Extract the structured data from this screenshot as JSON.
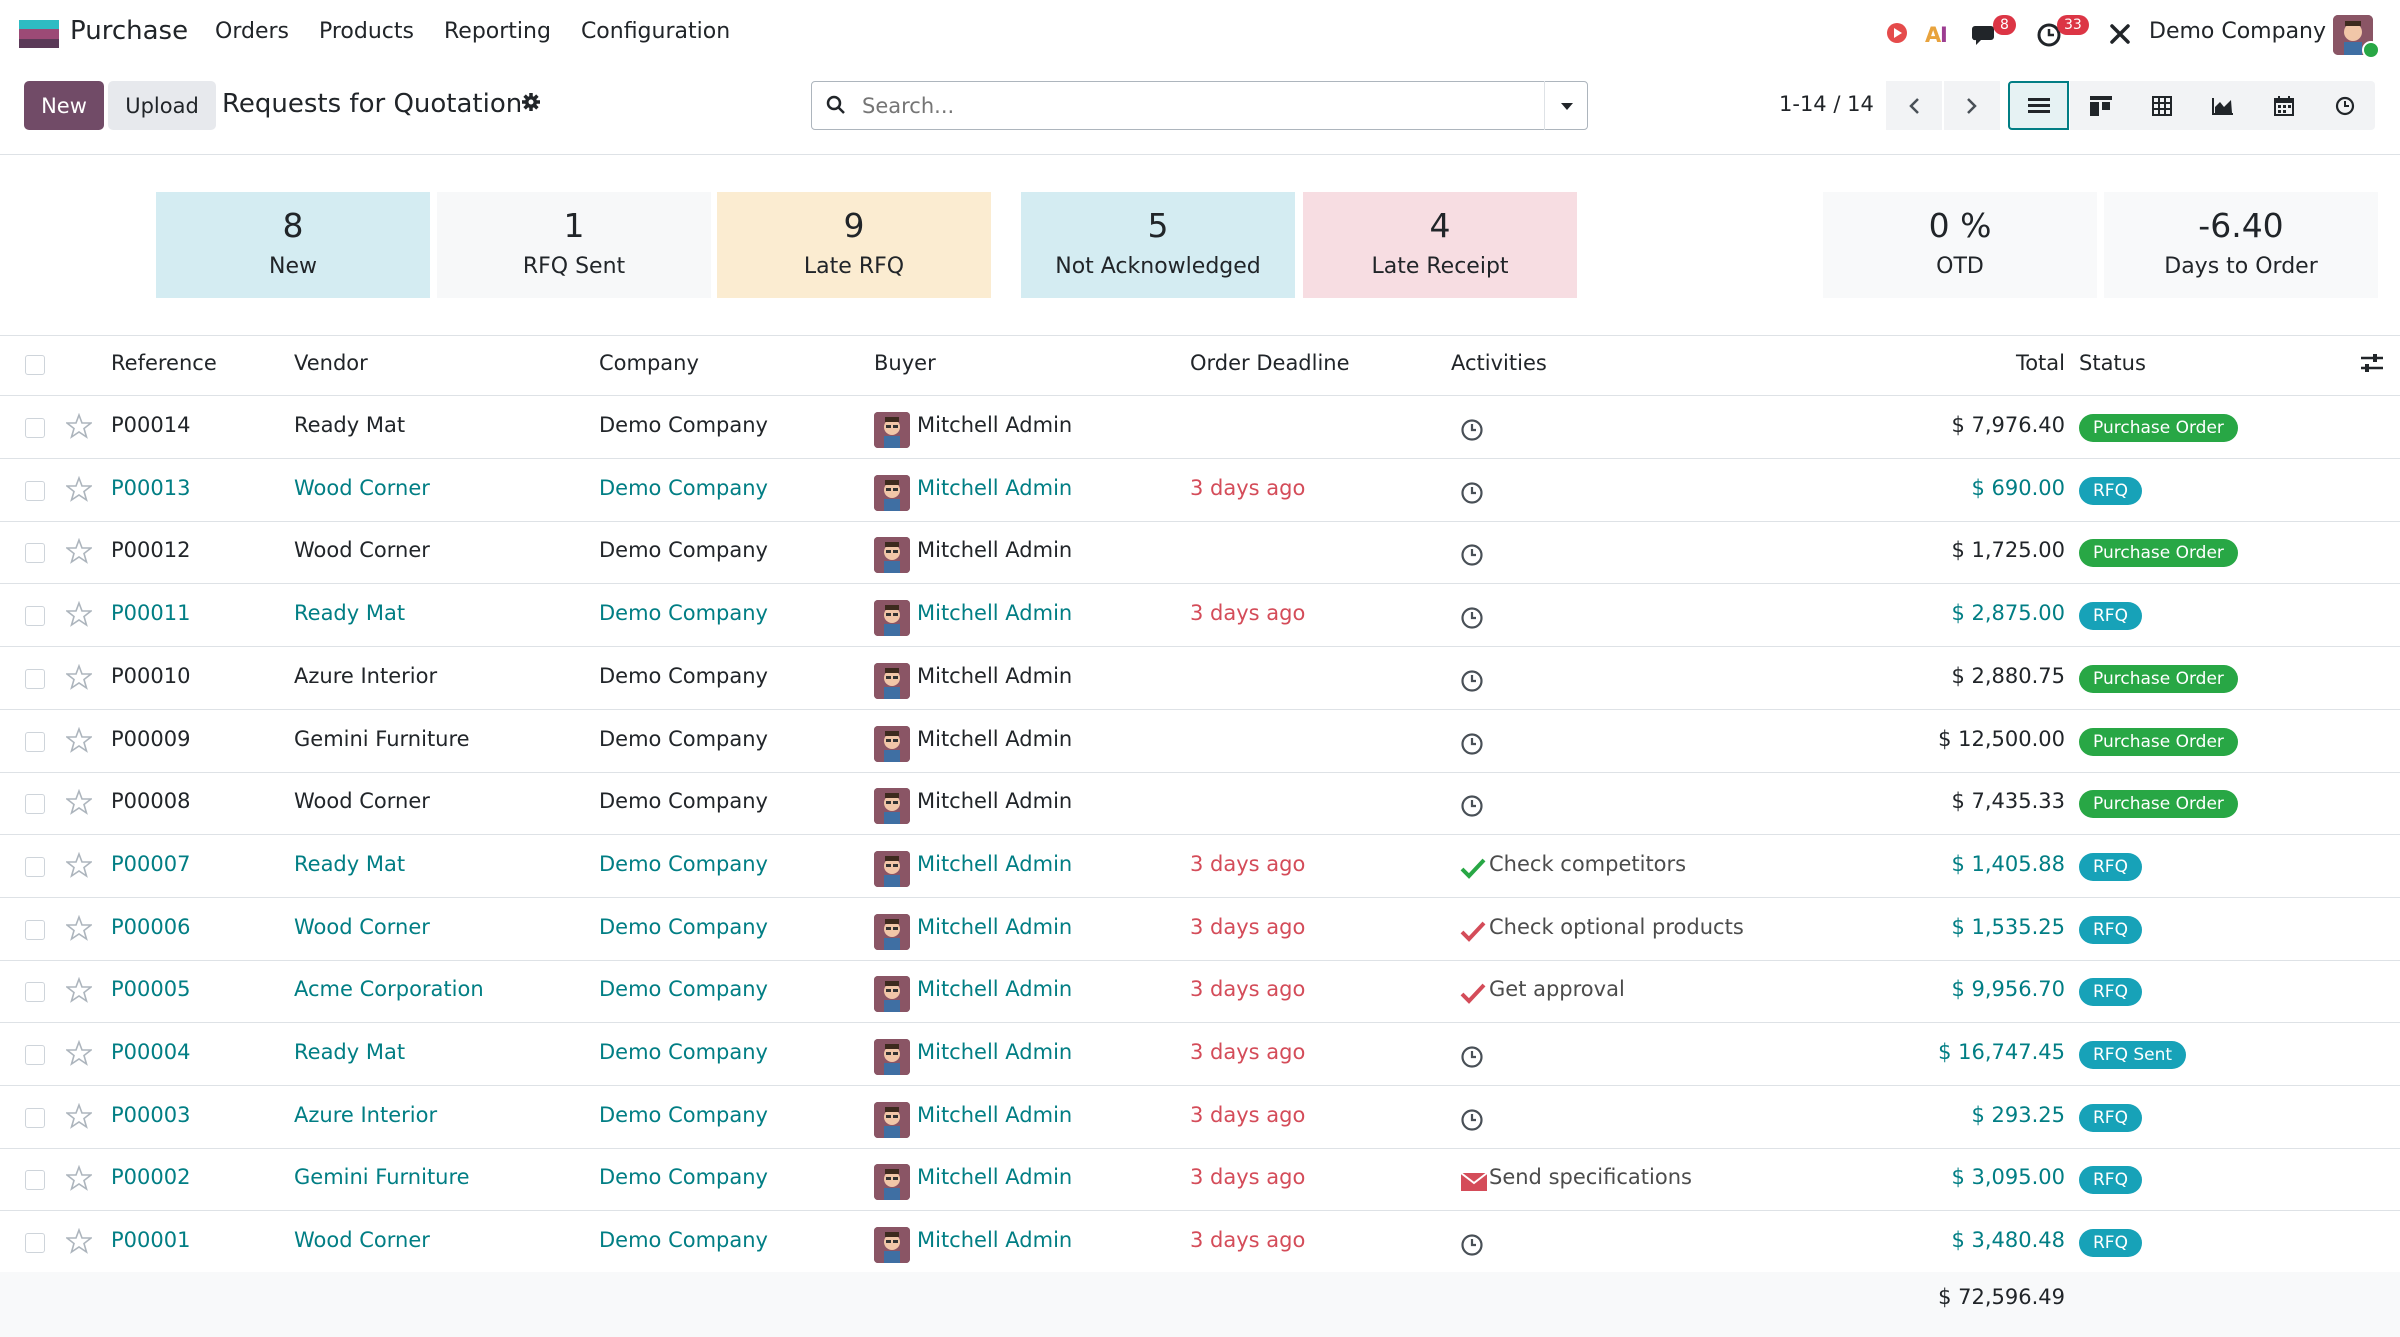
{
  "navbar": {
    "app_name": "Purchase",
    "menu": [
      "Orders",
      "Products",
      "Reporting",
      "Configuration"
    ],
    "messages_count": "8",
    "activities_count": "33",
    "company": "Demo Company",
    "icons": [
      "record-icon",
      "ai-icon",
      "chat-icon",
      "clock-icon",
      "tools-icon"
    ]
  },
  "control": {
    "new_label": "New",
    "upload_label": "Upload",
    "title": "Requests for Quotation",
    "search_placeholder": "Search...",
    "pager": "1-14 / 14",
    "views": [
      "list-view-icon",
      "kanban-view-icon",
      "pivot-view-icon",
      "graph-view-icon",
      "calendar-view-icon",
      "activity-view-icon"
    ]
  },
  "dashboard": {
    "cards": [
      {
        "value": "8",
        "label": "New",
        "bg": "#d4ecf2"
      },
      {
        "value": "1",
        "label": "RFQ Sent",
        "bg": "#f7f8f9"
      },
      {
        "value": "9",
        "label": "Late RFQ",
        "bg": "#fbecd1"
      },
      {
        "value": "5",
        "label": "Not Acknowledged",
        "bg": "#d4ecf2"
      },
      {
        "value": "4",
        "label": "Late Receipt",
        "bg": "#f7dde2"
      }
    ],
    "kpis": [
      {
        "value": "0 %",
        "label": "OTD"
      },
      {
        "value": "-6.40",
        "label": "Days to Order"
      }
    ]
  },
  "table": {
    "columns": [
      "Reference",
      "Vendor",
      "Company",
      "Buyer",
      "Order Deadline",
      "Activities",
      "Total",
      "Status"
    ],
    "rows": [
      {
        "ref": "P00014",
        "vendor": "Ready Mat",
        "company": "Demo Company",
        "buyer": "Mitchell Admin",
        "deadline": "",
        "activity": "",
        "activity_icon": "clock",
        "total": "$ 7,976.40",
        "status": "Purchase Order",
        "style": "plain"
      },
      {
        "ref": "P00013",
        "vendor": "Wood Corner",
        "company": "Demo Company",
        "buyer": "Mitchell Admin",
        "deadline": "3 days ago",
        "activity": "",
        "activity_icon": "clock",
        "total": "$ 690.00",
        "status": "RFQ",
        "style": "link"
      },
      {
        "ref": "P00012",
        "vendor": "Wood Corner",
        "company": "Demo Company",
        "buyer": "Mitchell Admin",
        "deadline": "",
        "activity": "",
        "activity_icon": "clock",
        "total": "$ 1,725.00",
        "status": "Purchase Order",
        "style": "plain"
      },
      {
        "ref": "P00011",
        "vendor": "Ready Mat",
        "company": "Demo Company",
        "buyer": "Mitchell Admin",
        "deadline": "3 days ago",
        "activity": "",
        "activity_icon": "clock",
        "total": "$ 2,875.00",
        "status": "RFQ",
        "style": "link"
      },
      {
        "ref": "P00010",
        "vendor": "Azure Interior",
        "company": "Demo Company",
        "buyer": "Mitchell Admin",
        "deadline": "",
        "activity": "",
        "activity_icon": "clock",
        "total": "$ 2,880.75",
        "status": "Purchase Order",
        "style": "plain"
      },
      {
        "ref": "P00009",
        "vendor": "Gemini Furniture",
        "company": "Demo Company",
        "buyer": "Mitchell Admin",
        "deadline": "",
        "activity": "",
        "activity_icon": "clock",
        "total": "$ 12,500.00",
        "status": "Purchase Order",
        "style": "plain"
      },
      {
        "ref": "P00008",
        "vendor": "Wood Corner",
        "company": "Demo Company",
        "buyer": "Mitchell Admin",
        "deadline": "",
        "activity": "",
        "activity_icon": "clock",
        "total": "$ 7,435.33",
        "status": "Purchase Order",
        "style": "plain"
      },
      {
        "ref": "P00007",
        "vendor": "Ready Mat",
        "company": "Demo Company",
        "buyer": "Mitchell Admin",
        "deadline": "3 days ago",
        "activity": "Check competitors",
        "activity_icon": "check-green",
        "total": "$ 1,405.88",
        "status": "RFQ",
        "style": "link"
      },
      {
        "ref": "P00006",
        "vendor": "Wood Corner",
        "company": "Demo Company",
        "buyer": "Mitchell Admin",
        "deadline": "3 days ago",
        "activity": "Check optional products",
        "activity_icon": "check-red",
        "total": "$ 1,535.25",
        "status": "RFQ",
        "style": "link"
      },
      {
        "ref": "P00005",
        "vendor": "Acme Corporation",
        "company": "Demo Company",
        "buyer": "Mitchell Admin",
        "deadline": "3 days ago",
        "activity": "Get approval",
        "activity_icon": "check-red",
        "total": "$ 9,956.70",
        "status": "RFQ",
        "style": "link"
      },
      {
        "ref": "P00004",
        "vendor": "Ready Mat",
        "company": "Demo Company",
        "buyer": "Mitchell Admin",
        "deadline": "3 days ago",
        "activity": "",
        "activity_icon": "clock",
        "total": "$ 16,747.45",
        "status": "RFQ Sent",
        "style": "link"
      },
      {
        "ref": "P00003",
        "vendor": "Azure Interior",
        "company": "Demo Company",
        "buyer": "Mitchell Admin",
        "deadline": "3 days ago",
        "activity": "",
        "activity_icon": "clock",
        "total": "$ 293.25",
        "status": "RFQ",
        "style": "link"
      },
      {
        "ref": "P00002",
        "vendor": "Gemini Furniture",
        "company": "Demo Company",
        "buyer": "Mitchell Admin",
        "deadline": "3 days ago",
        "activity": "Send specifications",
        "activity_icon": "email-red",
        "total": "$ 3,095.00",
        "status": "RFQ",
        "style": "link"
      },
      {
        "ref": "P00001",
        "vendor": "Wood Corner",
        "company": "Demo Company",
        "buyer": "Mitchell Admin",
        "deadline": "3 days ago",
        "activity": "",
        "activity_icon": "clock",
        "total": "$ 3,480.48",
        "status": "RFQ",
        "style": "link"
      }
    ],
    "grand_total": "$ 72,596.49"
  },
  "colors": {
    "brand": "#714b67",
    "link": "#017e84",
    "late": "#d44c59",
    "status_po": "#28a745",
    "status_rfq": "#17a2b8"
  }
}
